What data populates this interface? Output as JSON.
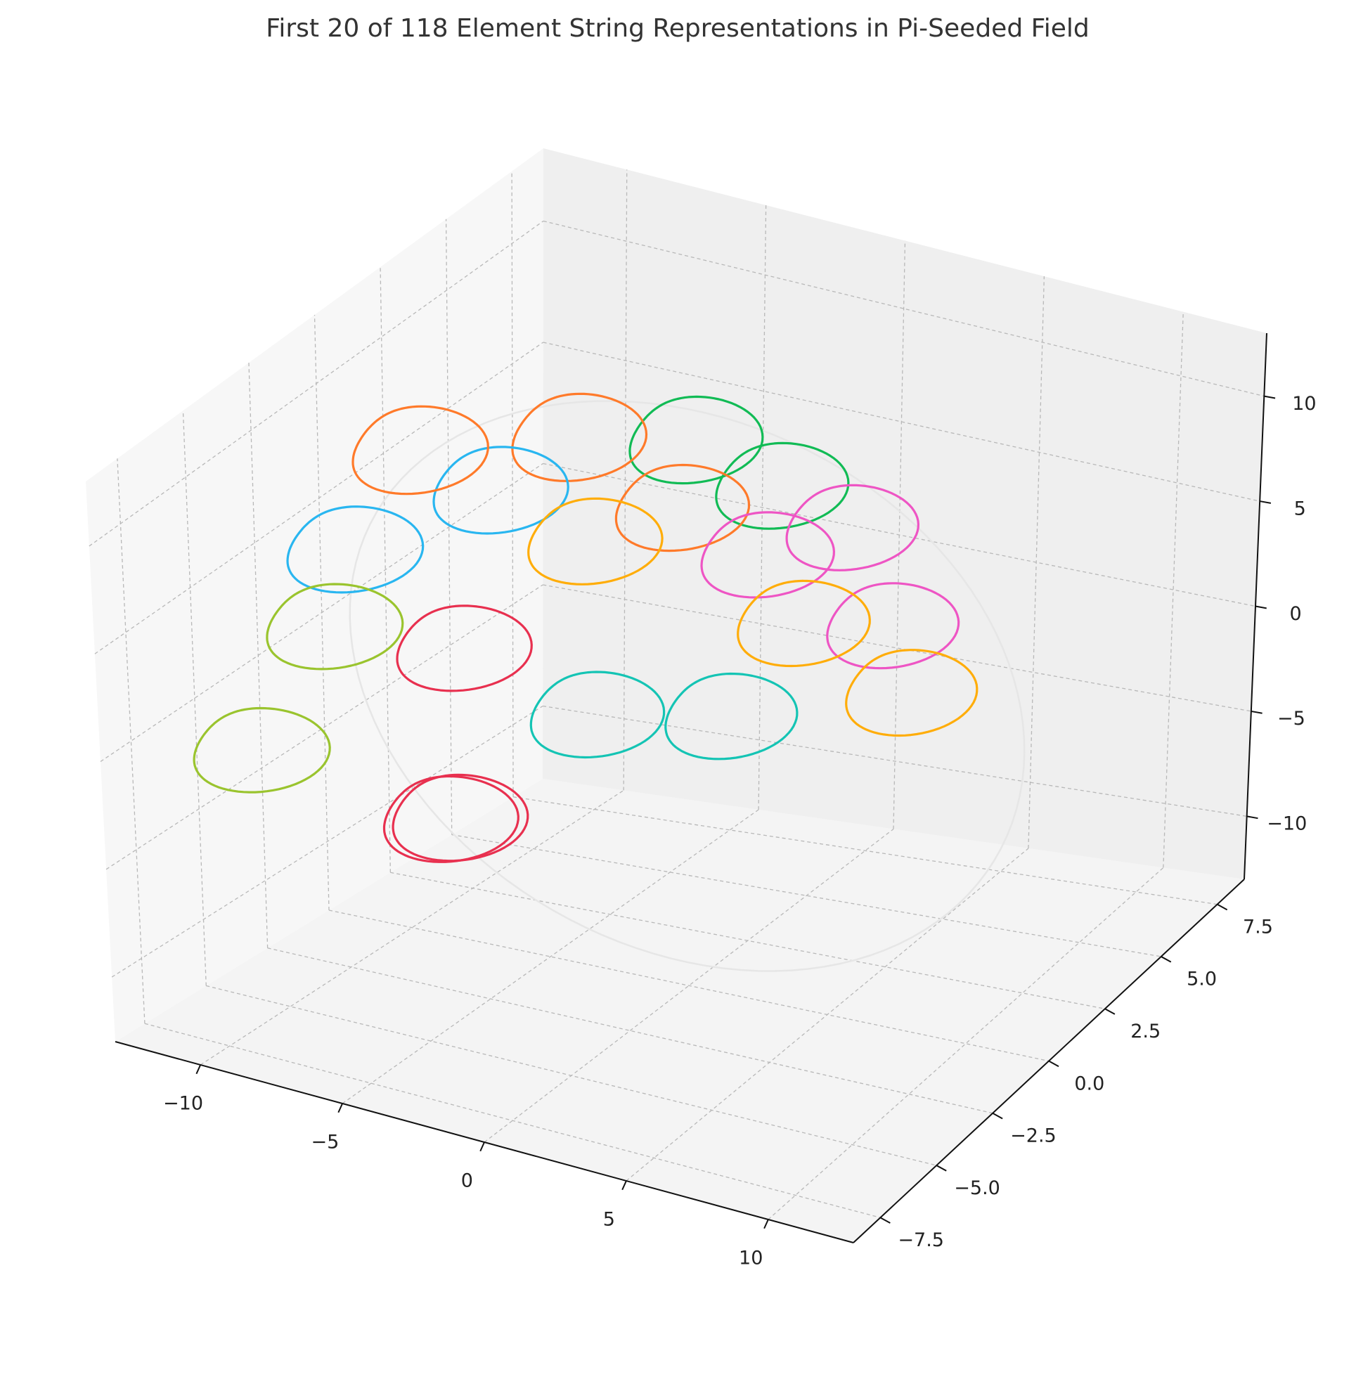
{
  "chart_data": {
    "type": "line3d",
    "title": "First 20 of 118 Element String Representations in Pi-Seeded Field",
    "grid": true,
    "xlim": [
      -13,
      13
    ],
    "ylim": [
      -8.7,
      8.7
    ],
    "zlim": [
      -13,
      13
    ],
    "x_ticks": [
      {
        "value": -10,
        "label": "−10"
      },
      {
        "value": -5,
        "label": "−5"
      },
      {
        "value": 0,
        "label": "0"
      },
      {
        "value": 5,
        "label": "5"
      },
      {
        "value": 10,
        "label": "10"
      }
    ],
    "y_ticks": [
      {
        "value": -7.5,
        "label": "−7.5"
      },
      {
        "value": -5,
        "label": "−5.0"
      },
      {
        "value": -2.5,
        "label": "−2.5"
      },
      {
        "value": 0,
        "label": "0.0"
      },
      {
        "value": 2.5,
        "label": "2.5"
      },
      {
        "value": 5,
        "label": "5.0"
      },
      {
        "value": 7.5,
        "label": "7.5"
      }
    ],
    "z_ticks": [
      {
        "value": -10,
        "label": "−10"
      },
      {
        "value": -5,
        "label": "−5"
      },
      {
        "value": 0,
        "label": "0"
      },
      {
        "value": 5,
        "label": "5"
      },
      {
        "value": 10,
        "label": "10"
      }
    ],
    "background_circle": {
      "radius": 12,
      "color": "#e6e6e6"
    },
    "strings": [
      {
        "color": "#e8304f",
        "center": [
          -2.8,
          -6.4,
          -1.5
        ]
      },
      {
        "color": "#e8304f",
        "center": [
          -4.8,
          -4.5,
          -3.5
        ]
      },
      {
        "color": "#e8304f",
        "center": [
          -7.5,
          -0.8,
          0.5
        ]
      },
      {
        "color": "#9ac42e",
        "center": [
          -10.8,
          -5.2,
          -1.5
        ]
      },
      {
        "color": "#9ac42e",
        "center": [
          -11.0,
          -2.0,
          1.5
        ]
      },
      {
        "color": "#14c4b4",
        "center": [
          -3.5,
          0.0,
          -2.0
        ]
      },
      {
        "color": "#14c4b4",
        "center": [
          -1.5,
          3.2,
          -4.0
        ]
      },
      {
        "color": "#29b6f0",
        "center": [
          -12.6,
          0.6,
          2.5
        ]
      },
      {
        "color": "#29b6f0",
        "center": [
          -10.3,
          3.8,
          3.2
        ]
      },
      {
        "color": "#ff7a2a",
        "center": [
          -12.8,
          3.4,
          4.6
        ]
      },
      {
        "color": "#ff7a2a",
        "center": [
          -9.3,
          5.8,
          4.2
        ]
      },
      {
        "color": "#ff7a2a",
        "center": [
          -5.4,
          5.6,
          2.3
        ]
      },
      {
        "color": "#ffad0a",
        "center": [
          -6.2,
          3.0,
          2.6
        ]
      },
      {
        "color": "#ffad0a",
        "center": [
          0.4,
          4.0,
          -0.1
        ]
      },
      {
        "color": "#ffad0a",
        "center": [
          4.3,
          4.0,
          -2.2
        ]
      },
      {
        "color": "#11bb55",
        "center": [
          -6.9,
          7.8,
          3.2
        ]
      },
      {
        "color": "#11bb55",
        "center": [
          -3.5,
          7.5,
          2.3
        ]
      },
      {
        "color": "#ee55c4",
        "center": [
          -1.7,
          4.9,
          1.7
        ]
      },
      {
        "color": "#ee55c4",
        "center": [
          3.0,
          4.7,
          -0.1
        ]
      },
      {
        "color": "#ee55c4",
        "center": [
          -0.5,
          7.0,
          1.6
        ]
      }
    ]
  }
}
